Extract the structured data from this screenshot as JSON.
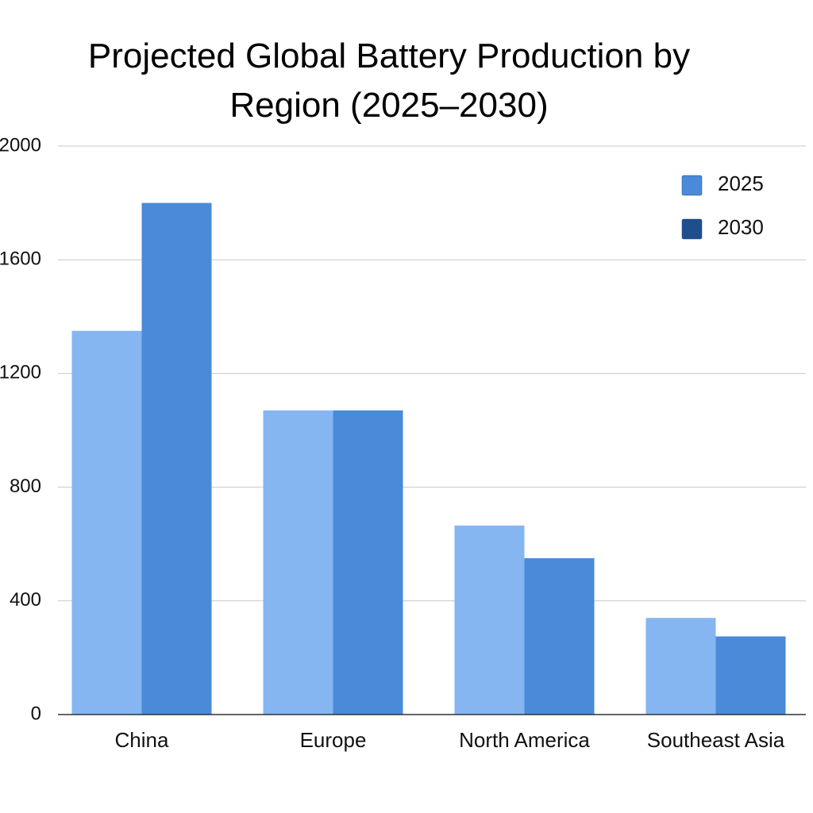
{
  "chart_data": {
    "type": "bar",
    "title": "Projected Global Battery Production by Region (2025–2030)",
    "categories": [
      "China",
      "Europe",
      "North America",
      "Southeast Asia"
    ],
    "series": [
      {
        "name": "2025",
        "color": "#85b6f2",
        "legend_color": "#4a8ad8",
        "values": [
          1350,
          1070,
          665,
          340
        ]
      },
      {
        "name": "2030",
        "color": "#4a8ad8",
        "legend_color": "#1f4e8c",
        "values": [
          1800,
          1070,
          550,
          275
        ]
      }
    ],
    "ylim": [
      0,
      2000
    ],
    "yticks": [
      0,
      400,
      800,
      1200,
      1600,
      2000
    ],
    "grid": true,
    "legend": "upper right"
  }
}
